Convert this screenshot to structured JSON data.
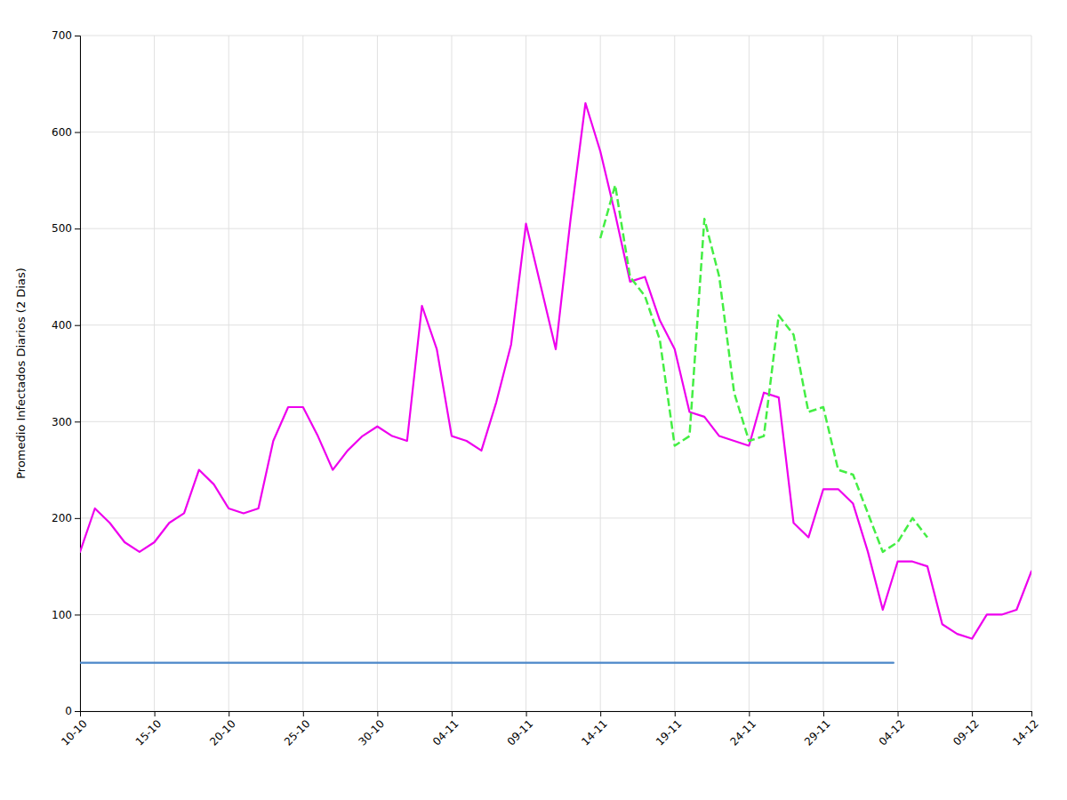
{
  "chart_data": {
    "type": "line",
    "y_label": "Promedio Infectados Diarios (2 Dias)",
    "xlim": [
      0,
      64
    ],
    "xticks": [
      {
        "value": 0,
        "label": "10-10"
      },
      {
        "value": 5,
        "label": "15-10"
      },
      {
        "value": 10,
        "label": "20-10"
      },
      {
        "value": 15,
        "label": "25-10"
      },
      {
        "value": 20,
        "label": "30-10"
      },
      {
        "value": 25,
        "label": "04-11"
      },
      {
        "value": 30,
        "label": "09-11"
      },
      {
        "value": 35,
        "label": "14-11"
      },
      {
        "value": 40,
        "label": "19-11"
      },
      {
        "value": 45,
        "label": "24-11"
      },
      {
        "value": 50,
        "label": "29-11"
      },
      {
        "value": 55,
        "label": "04-12"
      },
      {
        "value": 60,
        "label": "09-12"
      },
      {
        "value": 64,
        "label": "14-12"
      }
    ],
    "ylim": [
      0,
      700
    ],
    "yticks": [
      0,
      100,
      200,
      300,
      400,
      500,
      600,
      700
    ],
    "grid": true,
    "series": [
      {
        "color": "#ee00ee",
        "line_style": "solid",
        "x": [
          0,
          1,
          2,
          3,
          4,
          5,
          6,
          7,
          8,
          9,
          10,
          11,
          12,
          13,
          14,
          15,
          16,
          17,
          18,
          19,
          20,
          21,
          22,
          23,
          24,
          25,
          26,
          27,
          28,
          29,
          30,
          31,
          32,
          33,
          34,
          35,
          36,
          37,
          38,
          39,
          40,
          41,
          42,
          43,
          44,
          45,
          46,
          47,
          48,
          49,
          50,
          51,
          52,
          53,
          54,
          55,
          56,
          57,
          58,
          59,
          60,
          61,
          62,
          63,
          64
        ],
        "values": [
          165,
          210,
          195,
          175,
          165,
          175,
          195,
          205,
          250,
          235,
          210,
          205,
          210,
          280,
          315,
          315,
          285,
          250,
          270,
          285,
          295,
          285,
          280,
          420,
          375,
          285,
          280,
          270,
          320,
          380,
          505,
          440,
          375,
          510,
          630,
          580,
          515,
          445,
          450,
          405,
          375,
          310,
          305,
          285,
          280,
          275,
          330,
          325,
          195,
          180,
          230,
          230,
          215,
          165,
          105,
          155,
          155,
          150,
          90,
          80,
          75,
          100,
          100,
          105,
          145
        ]
      },
      {
        "color": "#44ee44",
        "line_style": "dashed",
        "x": [
          35,
          36,
          37,
          38,
          39,
          40,
          41,
          42,
          43,
          44,
          45,
          46,
          47,
          48,
          49,
          50,
          51,
          52,
          53,
          54,
          55,
          56,
          57
        ],
        "values": [
          490,
          545,
          450,
          430,
          385,
          275,
          285,
          510,
          450,
          330,
          280,
          285,
          410,
          390,
          310,
          315,
          250,
          245,
          205,
          165,
          175,
          200,
          180
        ]
      },
      {
        "color": "#4a86c8",
        "line_style": "solid",
        "x": [
          0,
          54.72
        ],
        "values": [
          50,
          50
        ]
      }
    ]
  }
}
